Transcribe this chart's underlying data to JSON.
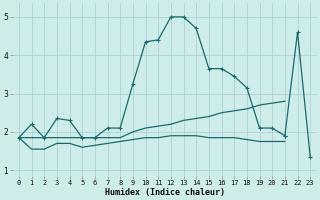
{
  "background_color": "#ceecea",
  "grid_color": "#aacccc",
  "line_color": "#1a6b6b",
  "xlabel": "Humidex (Indice chaleur)",
  "xlim": [
    -0.5,
    23.5
  ],
  "ylim": [
    0.85,
    5.35
  ],
  "yticks": [
    1,
    2,
    3,
    4,
    5
  ],
  "xticks": [
    0,
    1,
    2,
    3,
    4,
    5,
    6,
    7,
    8,
    9,
    10,
    11,
    12,
    13,
    14,
    15,
    16,
    17,
    18,
    19,
    20,
    21,
    22,
    23
  ],
  "line1_x": [
    0,
    1,
    2,
    3,
    4,
    5,
    6,
    7,
    8,
    9,
    10,
    11,
    12,
    13,
    14,
    15,
    16,
    17,
    18,
    19,
    20,
    21
  ],
  "line1_y": [
    1.85,
    2.2,
    1.85,
    2.35,
    2.3,
    1.85,
    1.85,
    2.1,
    2.1,
    3.25,
    4.35,
    4.4,
    5.0,
    5.0,
    4.7,
    3.65,
    3.65,
    3.45,
    3.15,
    2.1,
    2.1,
    1.9
  ],
  "line2_x": [
    0,
    1,
    2,
    3,
    4,
    5,
    6,
    7,
    8,
    9,
    10,
    11,
    12,
    13,
    14,
    15,
    16,
    17,
    18,
    19,
    20,
    21
  ],
  "line2_y": [
    1.85,
    1.85,
    1.85,
    1.85,
    1.85,
    1.85,
    1.85,
    1.85,
    1.85,
    2.0,
    2.1,
    2.15,
    2.2,
    2.3,
    2.35,
    2.4,
    2.5,
    2.55,
    2.6,
    2.7,
    2.75,
    2.8
  ],
  "line3_x": [
    0,
    1,
    2,
    3,
    4,
    5,
    6,
    7,
    8,
    9,
    10,
    11,
    12,
    13,
    14,
    15,
    16,
    17,
    18,
    19,
    20,
    21
  ],
  "line3_y": [
    1.85,
    1.55,
    1.55,
    1.7,
    1.7,
    1.6,
    1.65,
    1.7,
    1.75,
    1.8,
    1.85,
    1.85,
    1.9,
    1.9,
    1.9,
    1.85,
    1.85,
    1.85,
    1.8,
    1.75,
    1.75,
    1.75
  ],
  "line4_x": [
    21,
    22,
    23
  ],
  "line4_y": [
    1.9,
    4.6,
    1.35
  ],
  "marker_size": 2.5,
  "linewidth": 0.9,
  "tick_fontsize": 5.0,
  "xlabel_fontsize": 6.0
}
